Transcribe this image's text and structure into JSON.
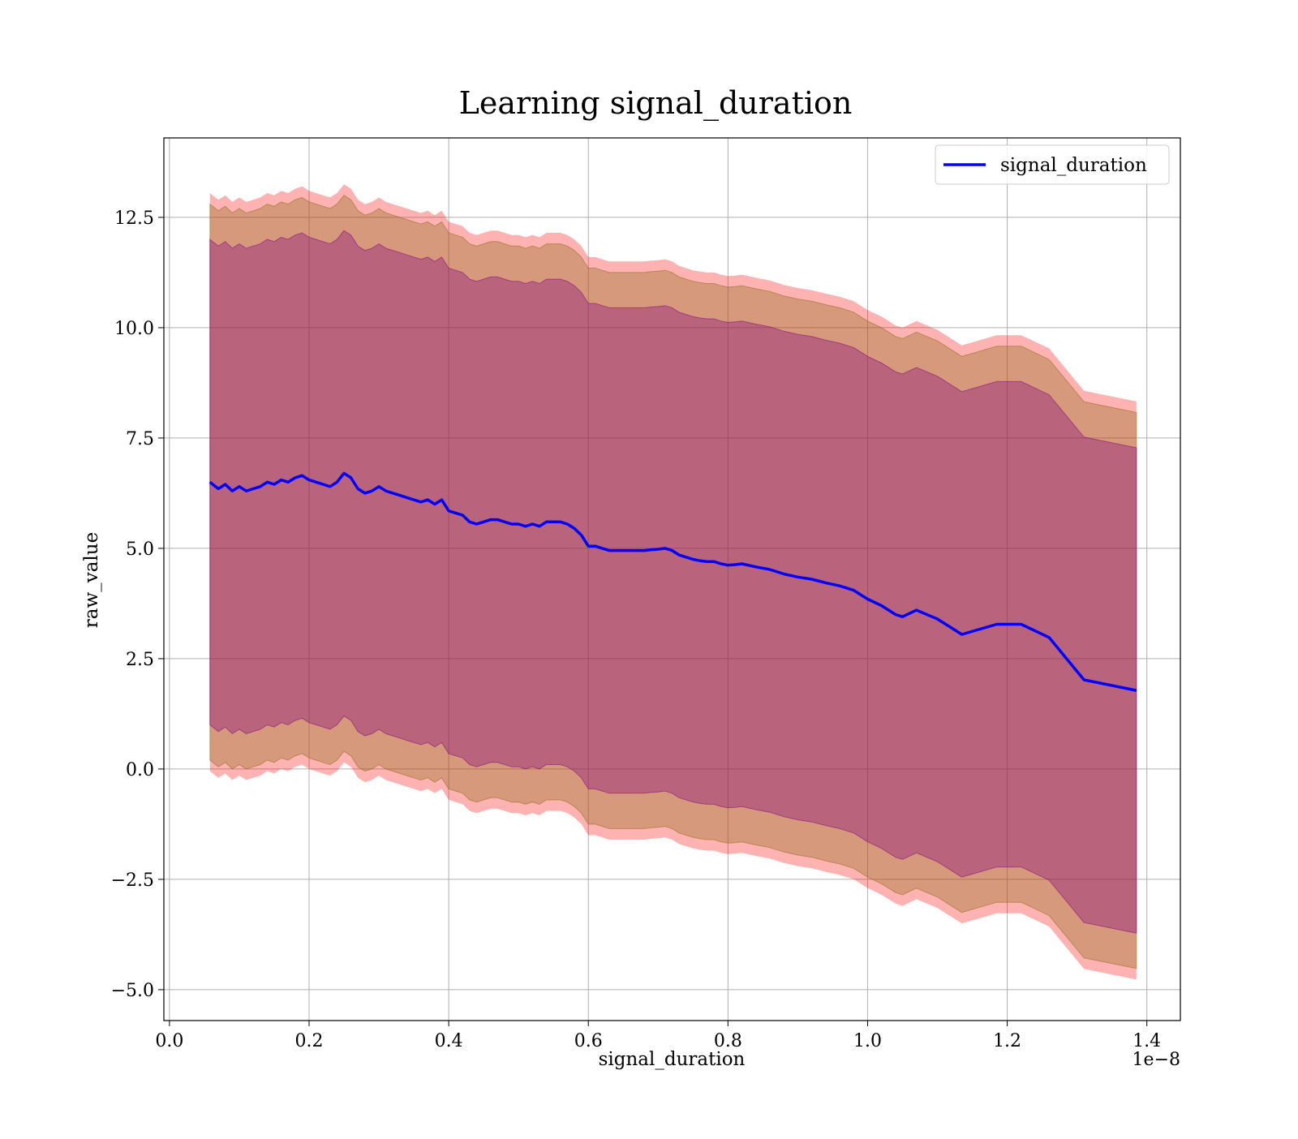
{
  "chart_data": {
    "type": "line",
    "title": "Learning signal_duration",
    "xlabel": "signal_duration",
    "ylabel": "raw_value",
    "x_offset_label": "1e−8",
    "xlim": [
      -0.008,
      1.448
    ],
    "ylim": [
      -5.7,
      14.3
    ],
    "x_ticks": [
      0.0,
      0.2,
      0.4,
      0.6,
      0.8,
      1.0,
      1.2,
      1.4
    ],
    "x_tick_labels": [
      "0.0",
      "0.2",
      "0.4",
      "0.6",
      "0.8",
      "1.0",
      "1.2",
      "1.4"
    ],
    "y_ticks": [
      -5.0,
      -2.5,
      0.0,
      2.5,
      5.0,
      7.5,
      10.0,
      12.5
    ],
    "y_tick_labels": [
      "−5.0",
      "−2.5",
      "0.0",
      "2.5",
      "5.0",
      "7.5",
      "10.0",
      "12.5"
    ],
    "grid": true,
    "legend_position": "top-right",
    "series": [
      {
        "name": "signal_duration",
        "color": "#0000ff",
        "x": [
          0.058,
          0.07,
          0.08,
          0.09,
          0.1,
          0.11,
          0.12,
          0.13,
          0.14,
          0.15,
          0.16,
          0.17,
          0.18,
          0.19,
          0.2,
          0.21,
          0.22,
          0.23,
          0.24,
          0.25,
          0.26,
          0.27,
          0.28,
          0.29,
          0.3,
          0.31,
          0.32,
          0.33,
          0.34,
          0.35,
          0.36,
          0.37,
          0.38,
          0.39,
          0.4,
          0.41,
          0.42,
          0.43,
          0.44,
          0.45,
          0.46,
          0.47,
          0.48,
          0.49,
          0.5,
          0.51,
          0.52,
          0.53,
          0.54,
          0.55,
          0.56,
          0.57,
          0.58,
          0.59,
          0.6,
          0.61,
          0.62,
          0.63,
          0.64,
          0.65,
          0.66,
          0.67,
          0.68,
          0.69,
          0.7,
          0.71,
          0.72,
          0.73,
          0.74,
          0.75,
          0.76,
          0.77,
          0.78,
          0.79,
          0.8,
          0.81,
          0.82,
          0.84,
          0.86,
          0.88,
          0.9,
          0.92,
          0.94,
          0.96,
          0.98,
          1.0,
          1.02,
          1.04,
          1.05,
          1.07,
          1.1,
          1.135,
          1.185,
          1.22,
          1.26,
          1.31,
          1.385
        ],
        "values": [
          6.5,
          6.35,
          6.45,
          6.3,
          6.4,
          6.3,
          6.35,
          6.4,
          6.5,
          6.45,
          6.55,
          6.5,
          6.6,
          6.65,
          6.55,
          6.5,
          6.45,
          6.4,
          6.5,
          6.7,
          6.6,
          6.35,
          6.25,
          6.3,
          6.4,
          6.3,
          6.25,
          6.2,
          6.15,
          6.1,
          6.05,
          6.1,
          6.0,
          6.1,
          5.85,
          5.8,
          5.75,
          5.6,
          5.55,
          5.6,
          5.65,
          5.65,
          5.6,
          5.55,
          5.55,
          5.5,
          5.55,
          5.5,
          5.6,
          5.6,
          5.6,
          5.55,
          5.45,
          5.3,
          5.05,
          5.05,
          5.0,
          4.95,
          4.95,
          4.95,
          4.95,
          4.95,
          4.95,
          4.97,
          4.98,
          5.0,
          4.95,
          4.85,
          4.8,
          4.75,
          4.72,
          4.7,
          4.7,
          4.65,
          4.62,
          4.63,
          4.65,
          4.58,
          4.52,
          4.42,
          4.35,
          4.3,
          4.22,
          4.15,
          4.05,
          3.85,
          3.7,
          3.5,
          3.45,
          3.6,
          3.4,
          3.05,
          3.28,
          3.28,
          2.98,
          2.02,
          1.78
        ]
      }
    ]
  }
}
